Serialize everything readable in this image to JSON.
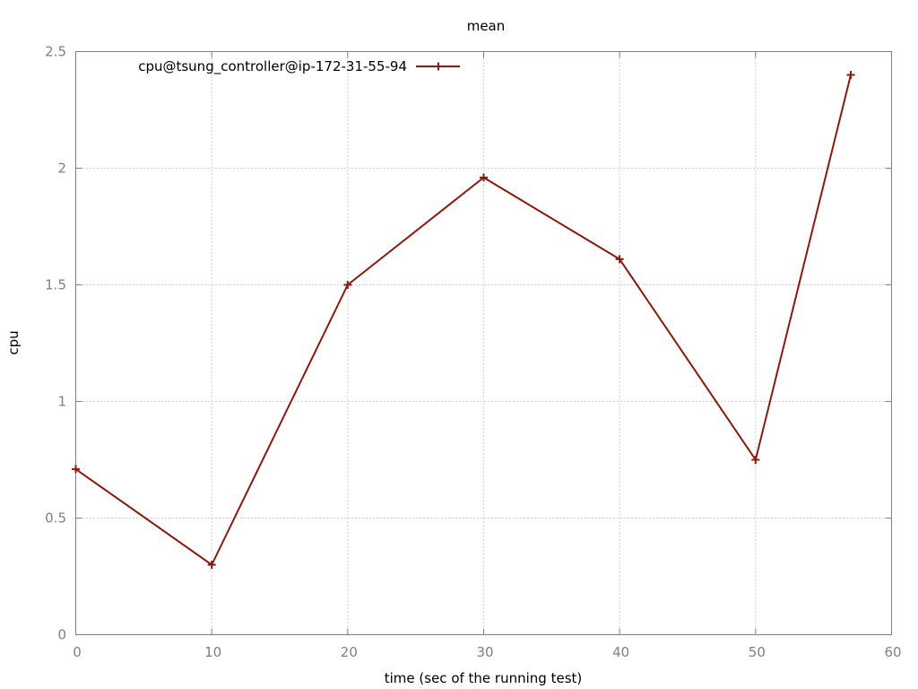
{
  "chart_data": {
    "type": "line",
    "title": "mean",
    "xlabel": "time (sec of the running test)",
    "ylabel": "cpu",
    "xlim": [
      0,
      60
    ],
    "ylim": [
      0,
      2.5
    ],
    "x_ticks": [
      "0",
      "10",
      "20",
      "30",
      "40",
      "50",
      "60"
    ],
    "y_ticks": [
      "0",
      "0.5",
      "1",
      "1.5",
      "2",
      "2.5"
    ],
    "grid": true,
    "legend_position": "top-left",
    "series": [
      {
        "name": "cpu@tsung_controller@ip-172-31-55-94",
        "color": "#8b1a0e",
        "marker": "plus",
        "x": [
          0,
          10,
          20,
          30,
          40,
          50,
          57
        ],
        "y": [
          0.71,
          0.3,
          1.5,
          1.96,
          1.61,
          0.75,
          2.4
        ]
      }
    ]
  }
}
